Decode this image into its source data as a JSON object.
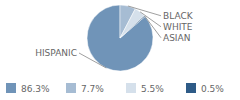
{
  "chart_data": {
    "type": "pie",
    "categories": [
      "HISPANIC",
      "BLACK",
      "WHITE",
      "ASIAN"
    ],
    "values": [
      86.3,
      7.7,
      5.5,
      0.5
    ],
    "value_labels": [
      "86.3%",
      "7.7%",
      "5.5%",
      "0.5%"
    ],
    "colors": [
      "#7094b8",
      "#a6bcd3",
      "#d5e0eb",
      "#2e5b87"
    ],
    "legend": "bottom"
  }
}
